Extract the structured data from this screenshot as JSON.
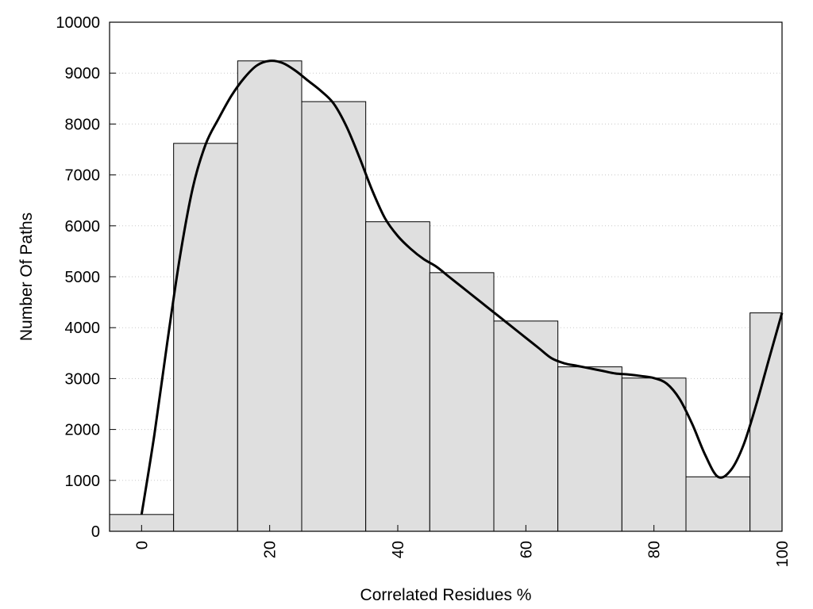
{
  "chart_data": {
    "type": "bar",
    "xlabel": "Correlated Residues %",
    "ylabel": "Number Of Paths",
    "ylim": [
      0,
      10000
    ],
    "xlim": [
      -5,
      100
    ],
    "y_ticks": [
      0,
      1000,
      2000,
      3000,
      4000,
      5000,
      6000,
      7000,
      8000,
      9000,
      10000
    ],
    "x_ticks": [
      0,
      20,
      40,
      60,
      80,
      100
    ],
    "bin_width": 10,
    "bins": [
      {
        "center": 0,
        "value": 330
      },
      {
        "center": 10,
        "value": 7620
      },
      {
        "center": 20,
        "value": 9240
      },
      {
        "center": 30,
        "value": 8440
      },
      {
        "center": 40,
        "value": 6080
      },
      {
        "center": 50,
        "value": 5080
      },
      {
        "center": 60,
        "value": 4130
      },
      {
        "center": 70,
        "value": 3230
      },
      {
        "center": 80,
        "value": 3010
      },
      {
        "center": 90,
        "value": 1070
      },
      {
        "center": 100,
        "value": 4290
      }
    ],
    "curve": {
      "type": "line",
      "x": [
        0,
        2,
        4,
        6,
        8,
        10,
        12,
        14,
        16,
        18,
        20,
        22,
        24,
        26,
        28,
        30,
        32,
        34,
        36,
        38,
        40,
        42,
        44,
        46,
        48,
        50,
        52,
        54,
        56,
        58,
        60,
        62,
        64,
        66,
        68,
        70,
        72,
        74,
        76,
        78,
        80,
        82,
        84,
        86,
        88,
        90,
        92,
        94,
        96,
        98,
        100
      ],
      "y": [
        330,
        1900,
        3700,
        5400,
        6750,
        7600,
        8100,
        8550,
        8900,
        9150,
        9240,
        9200,
        9050,
        8850,
        8650,
        8400,
        7950,
        7350,
        6700,
        6150,
        5800,
        5550,
        5350,
        5200,
        5000,
        4800,
        4600,
        4400,
        4200,
        4000,
        3800,
        3600,
        3400,
        3300,
        3250,
        3200,
        3150,
        3100,
        3080,
        3050,
        3010,
        2900,
        2600,
        2100,
        1500,
        1070,
        1200,
        1700,
        2500,
        3400,
        4290
      ]
    },
    "grid": {
      "y": true,
      "style": "dotted"
    },
    "colors": {
      "bar_fill": "#dfdfdf",
      "bar_stroke": "#000000",
      "curve": "#000000",
      "grid": "#c8c8c8"
    }
  }
}
